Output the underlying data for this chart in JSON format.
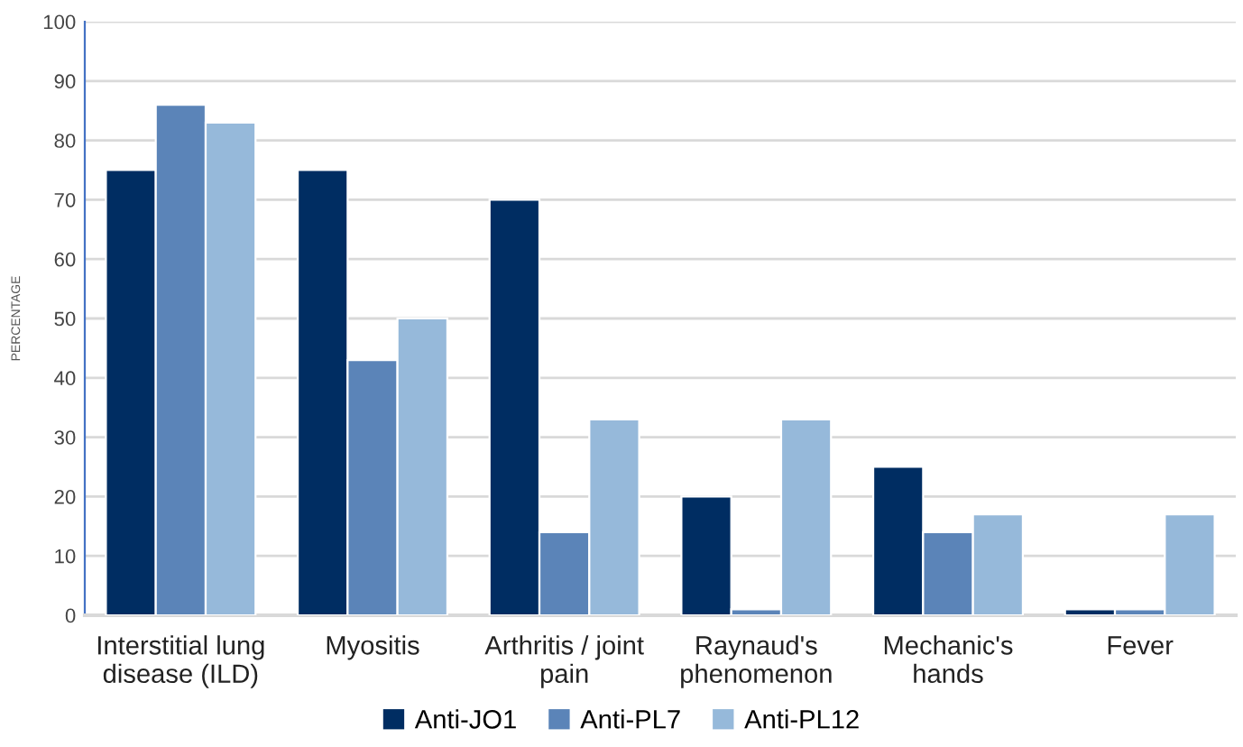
{
  "chart_data": {
    "type": "bar",
    "ylabel": "PERCENTAGE",
    "categories": [
      "Interstitial lung\ndisease (ILD)",
      "Myositis",
      "Arthritis / joint\npain",
      "Raynaud's\nphenomenon",
      "Mechanic's\nhands",
      "Fever"
    ],
    "series": [
      {
        "name": "Anti-JO1",
        "color": "#002d62",
        "values": [
          75,
          75,
          70,
          20,
          25,
          1
        ]
      },
      {
        "name": "Anti-PL7",
        "color": "#5b84b8",
        "values": [
          86,
          43,
          14,
          1,
          14,
          1
        ]
      },
      {
        "name": "Anti-PL12",
        "color": "#96b9da",
        "values": [
          83,
          50,
          33,
          33,
          17,
          17
        ]
      }
    ],
    "ylim": [
      0,
      100
    ],
    "yticks": [
      0,
      10,
      20,
      30,
      40,
      50,
      60,
      70,
      80,
      90,
      100
    ],
    "grid": "y",
    "legend": "bottom"
  }
}
